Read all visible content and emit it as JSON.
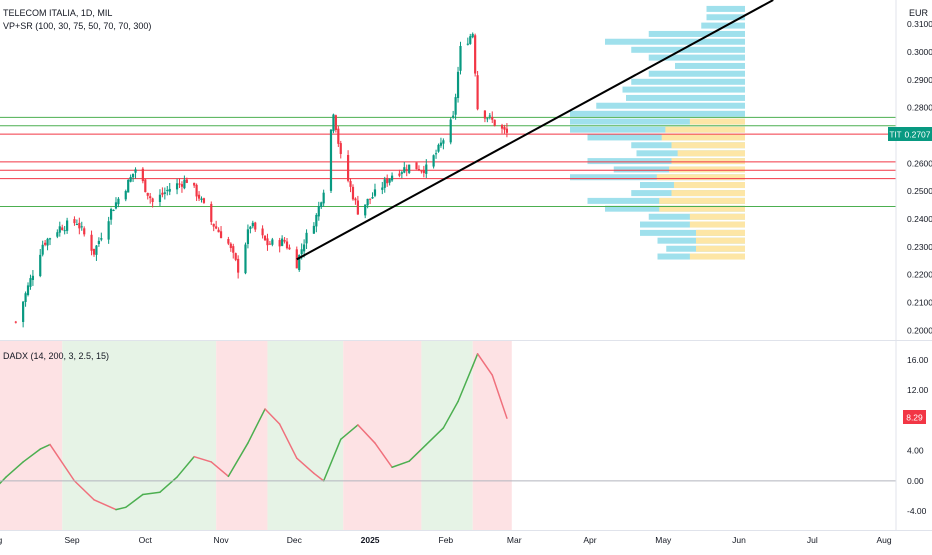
{
  "header": {
    "symbol_title": "TELECOM ITALIA, 1D, MIL",
    "vp_indicator": "VP+SR (100, 30, 75, 50, 70, 70, 300)",
    "currency": "EUR",
    "ticker": "TIT",
    "last_price": "0.2707"
  },
  "oscillator": {
    "label": "DADX (14, 200, 3, 2.5, 15)",
    "last_value": "8.29"
  },
  "colors": {
    "up": "#089981",
    "down": "#f23645",
    "support": "#4caf50",
    "resistance": "#f23645",
    "trendline": "#000000",
    "vp_volume": "#9fe0ec",
    "vp_value_area": "#fde6a6",
    "bg_red": "#fde2e4",
    "bg_green": "#e6f3e6"
  },
  "chart_data": [
    {
      "type": "candlestick",
      "title": "TELECOM ITALIA, 1D, MIL",
      "x_ticks": [
        "Aug",
        "Sep",
        "Oct",
        "Nov",
        "Dec",
        "2025",
        "Feb",
        "Mar",
        "Apr",
        "May",
        "Jun",
        "Jul",
        "Aug"
      ],
      "y_ticks": [
        "0.3100",
        "0.3000",
        "0.2900",
        "0.2800",
        "0.2700",
        "0.2600",
        "0.2500",
        "0.2400",
        "0.2300",
        "0.2200",
        "0.2100",
        "0.2000"
      ],
      "ylim": [
        0.1965,
        0.3187
      ],
      "last_price": 0.2707,
      "close_anchors": [
        [
          "2024-08-09",
          0.203
        ],
        [
          "2024-08-13",
          0.213
        ],
        [
          "2024-08-20",
          0.231
        ],
        [
          "2024-08-27",
          0.237
        ],
        [
          "2024-09-03",
          0.239
        ],
        [
          "2024-09-10",
          0.228
        ],
        [
          "2024-09-17",
          0.243
        ],
        [
          "2024-09-24",
          0.253
        ],
        [
          "2024-09-27",
          0.258
        ],
        [
          "2024-10-04",
          0.246
        ],
        [
          "2024-10-11",
          0.251
        ],
        [
          "2024-10-18",
          0.254
        ],
        [
          "2024-10-23",
          0.248
        ],
        [
          "2024-10-28",
          0.239
        ],
        [
          "2024-11-04",
          0.231
        ],
        [
          "2024-11-08",
          0.222
        ],
        [
          "2024-11-13",
          0.238
        ],
        [
          "2024-11-20",
          0.231
        ],
        [
          "2024-11-27",
          0.232
        ],
        [
          "2024-12-02",
          0.224
        ],
        [
          "2024-12-05",
          0.232
        ],
        [
          "2024-12-10",
          0.241
        ],
        [
          "2024-12-13",
          0.251
        ],
        [
          "2024-12-17",
          0.279
        ],
        [
          "2024-12-20",
          0.262
        ],
        [
          "2024-12-27",
          0.243
        ],
        [
          "2025-01-03",
          0.249
        ],
        [
          "2025-01-10",
          0.256
        ],
        [
          "2025-01-17",
          0.259
        ],
        [
          "2025-01-24",
          0.258
        ],
        [
          "2025-01-29",
          0.265
        ],
        [
          "2025-02-04",
          0.276
        ],
        [
          "2025-02-07",
          0.301
        ],
        [
          "2025-02-12",
          0.307
        ],
        [
          "2025-02-14",
          0.28
        ],
        [
          "2025-02-19",
          0.276
        ],
        [
          "2025-02-24",
          0.272
        ],
        [
          "2025-02-26",
          0.2707
        ]
      ],
      "horizontal_levels": [
        {
          "price": 0.2765,
          "kind": "support"
        },
        {
          "price": 0.2735,
          "kind": "support"
        },
        {
          "price": 0.2705,
          "kind": "resistance"
        },
        {
          "price": 0.2605,
          "kind": "resistance"
        },
        {
          "price": 0.2575,
          "kind": "resistance"
        },
        {
          "price": 0.2545,
          "kind": "resistance"
        },
        {
          "price": 0.2445,
          "kind": "support"
        }
      ],
      "trendline": {
        "from": [
          "2024-12-02",
          0.2255
        ],
        "to": [
          "2025-06-15",
          0.3187
        ]
      },
      "volume_profile": [
        {
          "price": 0.3155,
          "volume": 0.22,
          "value_area": 0.0
        },
        {
          "price": 0.3125,
          "volume": 0.22,
          "value_area": 0.0
        },
        {
          "price": 0.3095,
          "volume": 0.25,
          "value_area": 0.0
        },
        {
          "price": 0.3065,
          "volume": 0.55,
          "value_area": 0.0
        },
        {
          "price": 0.3037,
          "volume": 0.8,
          "value_area": 0.0
        },
        {
          "price": 0.3008,
          "volume": 0.65,
          "value_area": 0.0
        },
        {
          "price": 0.298,
          "volume": 0.55,
          "value_area": 0.0
        },
        {
          "price": 0.295,
          "volume": 0.4,
          "value_area": 0.0
        },
        {
          "price": 0.2922,
          "volume": 0.55,
          "value_area": 0.0
        },
        {
          "price": 0.2893,
          "volume": 0.65,
          "value_area": 0.0
        },
        {
          "price": 0.2865,
          "volume": 0.7,
          "value_area": 0.0
        },
        {
          "price": 0.2835,
          "volume": 0.68,
          "value_area": 0.0
        },
        {
          "price": 0.2807,
          "volume": 0.85,
          "value_area": 0.0
        },
        {
          "price": 0.2778,
          "volume": 1.0,
          "value_area": 0.0
        },
        {
          "price": 0.275,
          "volume": 1.0,
          "value_area": 0.45
        },
        {
          "price": 0.2721,
          "volume": 1.0,
          "value_area": 0.65
        },
        {
          "price": 0.2693,
          "volume": 0.9,
          "value_area": 0.68
        },
        {
          "price": 0.2665,
          "volume": 0.65,
          "value_area": 0.6
        },
        {
          "price": 0.2636,
          "volume": 0.62,
          "value_area": 0.55
        },
        {
          "price": 0.2608,
          "volume": 0.9,
          "value_area": 0.6
        },
        {
          "price": 0.2578,
          "volume": 0.75,
          "value_area": 0.62
        },
        {
          "price": 0.255,
          "volume": 1.0,
          "value_area": 0.72
        },
        {
          "price": 0.2522,
          "volume": 0.6,
          "value_area": 0.58
        },
        {
          "price": 0.2493,
          "volume": 0.65,
          "value_area": 0.6
        },
        {
          "price": 0.2465,
          "volume": 0.9,
          "value_area": 0.7
        },
        {
          "price": 0.2437,
          "volume": 0.8,
          "value_area": 0.7
        },
        {
          "price": 0.2408,
          "volume": 0.55,
          "value_area": 0.45
        },
        {
          "price": 0.238,
          "volume": 0.6,
          "value_area": 0.45
        },
        {
          "price": 0.235,
          "volume": 0.6,
          "value_area": 0.4
        },
        {
          "price": 0.2322,
          "volume": 0.5,
          "value_area": 0.4
        },
        {
          "price": 0.2293,
          "volume": 0.45,
          "value_area": 0.4
        },
        {
          "price": 0.2265,
          "volume": 0.5,
          "value_area": 0.45
        }
      ]
    },
    {
      "type": "line",
      "title": "DADX (14, 200, 3, 2.5, 15)",
      "y_ticks": [
        "16.00",
        "12.00",
        "8.00",
        "4.00",
        "0.00",
        "-4.00"
      ],
      "ylim": [
        -6.5,
        18.5
      ],
      "last_value": 8.29,
      "points": [
        [
          "2024-07-30",
          -1.5
        ],
        [
          "2024-08-05",
          0.5
        ],
        [
          "2024-08-12",
          2.5
        ],
        [
          "2024-08-19",
          4.2
        ],
        [
          "2024-08-23",
          4.8
        ],
        [
          "2024-09-02",
          0.0
        ],
        [
          "2024-09-10",
          -2.5
        ],
        [
          "2024-09-19",
          -3.8
        ],
        [
          "2024-09-23",
          -3.5
        ],
        [
          "2024-09-30",
          -1.8
        ],
        [
          "2024-10-07",
          -1.5
        ],
        [
          "2024-10-14",
          0.5
        ],
        [
          "2024-10-21",
          3.2
        ],
        [
          "2024-10-28",
          2.5
        ],
        [
          "2024-11-04",
          0.6
        ],
        [
          "2024-11-12",
          5.0
        ],
        [
          "2024-11-19",
          9.5
        ],
        [
          "2024-11-25",
          7.5
        ],
        [
          "2024-12-02",
          3.0
        ],
        [
          "2024-12-09",
          1.0
        ],
        [
          "2024-12-13",
          0.0
        ],
        [
          "2024-12-20",
          5.5
        ],
        [
          "2024-12-27",
          7.4
        ],
        [
          "2025-01-03",
          5.0
        ],
        [
          "2025-01-10",
          1.8
        ],
        [
          "2025-01-17",
          2.6
        ],
        [
          "2025-01-24",
          4.8
        ],
        [
          "2025-01-31",
          7.0
        ],
        [
          "2025-02-06",
          10.5
        ],
        [
          "2025-02-12",
          15.2
        ],
        [
          "2025-02-14",
          16.8
        ],
        [
          "2025-02-20",
          14.0
        ],
        [
          "2025-02-26",
          8.29
        ]
      ],
      "regimes": [
        {
          "from": "2024-07-25",
          "to": "2024-08-28",
          "state": "bearish"
        },
        {
          "from": "2024-08-28",
          "to": "2024-10-30",
          "state": "bullish"
        },
        {
          "from": "2024-10-30",
          "to": "2024-11-20",
          "state": "bearish"
        },
        {
          "from": "2024-11-20",
          "to": "2024-12-21",
          "state": "bullish"
        },
        {
          "from": "2024-12-21",
          "to": "2025-01-22",
          "state": "bearish"
        },
        {
          "from": "2025-01-22",
          "to": "2025-02-12",
          "state": "bullish"
        },
        {
          "from": "2025-02-12",
          "to": "2025-02-28",
          "state": "bearish"
        }
      ]
    }
  ]
}
